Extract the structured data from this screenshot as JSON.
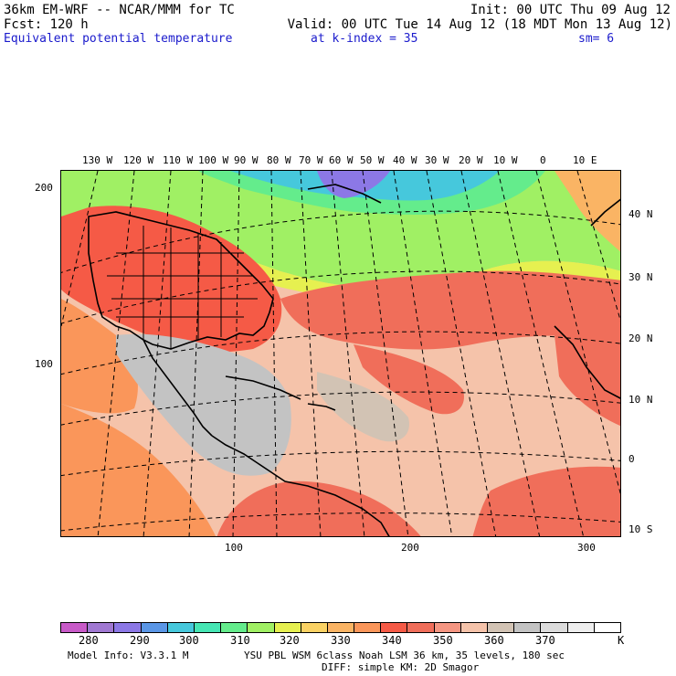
{
  "header": {
    "model_line": "36km EM-WRF -- NCAR/MMM for TC",
    "init_line": "Init: 00 UTC Thu 09 Aug 12",
    "fcst_line": "Fcst:  120 h",
    "valid_line": "Valid: 00 UTC Tue 14 Aug 12 (18 MDT Mon 13 Aug 12)",
    "field_name": "Equivalent potential temperature",
    "level_label": "at k-index =  35",
    "smoothing_label": "sm= 6"
  },
  "map": {
    "top_longitude_labels": [
      "130 W",
      "120 W",
      "110 W",
      "100 W",
      "90 W",
      "80 W",
      "70 W",
      "60 W",
      "50 W",
      "40 W",
      "30 W",
      "20 W",
      "10 W",
      "0",
      "10 E"
    ],
    "right_latitude_labels": [
      "40 N",
      "30 N",
      "20 N",
      "10 N",
      "0",
      "10 S"
    ],
    "left_grid_labels": [
      "200",
      "100"
    ],
    "bottom_grid_labels": [
      "100",
      "200",
      "300"
    ]
  },
  "colorbar": {
    "colors": [
      "#c85ac8",
      "#a078d2",
      "#8c78e6",
      "#5a96e6",
      "#46c8dc",
      "#46e6b4",
      "#64ec8c",
      "#a0f064",
      "#e6f050",
      "#fad264",
      "#fab464",
      "#fa965a",
      "#f55a46",
      "#f06e5a",
      "#f59682",
      "#f5c3aa",
      "#d2c3b4",
      "#c3c3c3",
      "#dcdcdc",
      "#eeeeee",
      "#ffffff"
    ],
    "labels": [
      "280",
      "290",
      "300",
      "310",
      "320",
      "330",
      "340",
      "350",
      "360",
      "370",
      "K"
    ]
  },
  "footer": {
    "model_info": "Model Info: V3.3.1 M",
    "physics_line": "YSU PBL  WSM 6class  Noah LSM  36 km,   35 levels,  180 sec",
    "diffusion_line": "DIFF: simple KM: 2D Smagor"
  }
}
